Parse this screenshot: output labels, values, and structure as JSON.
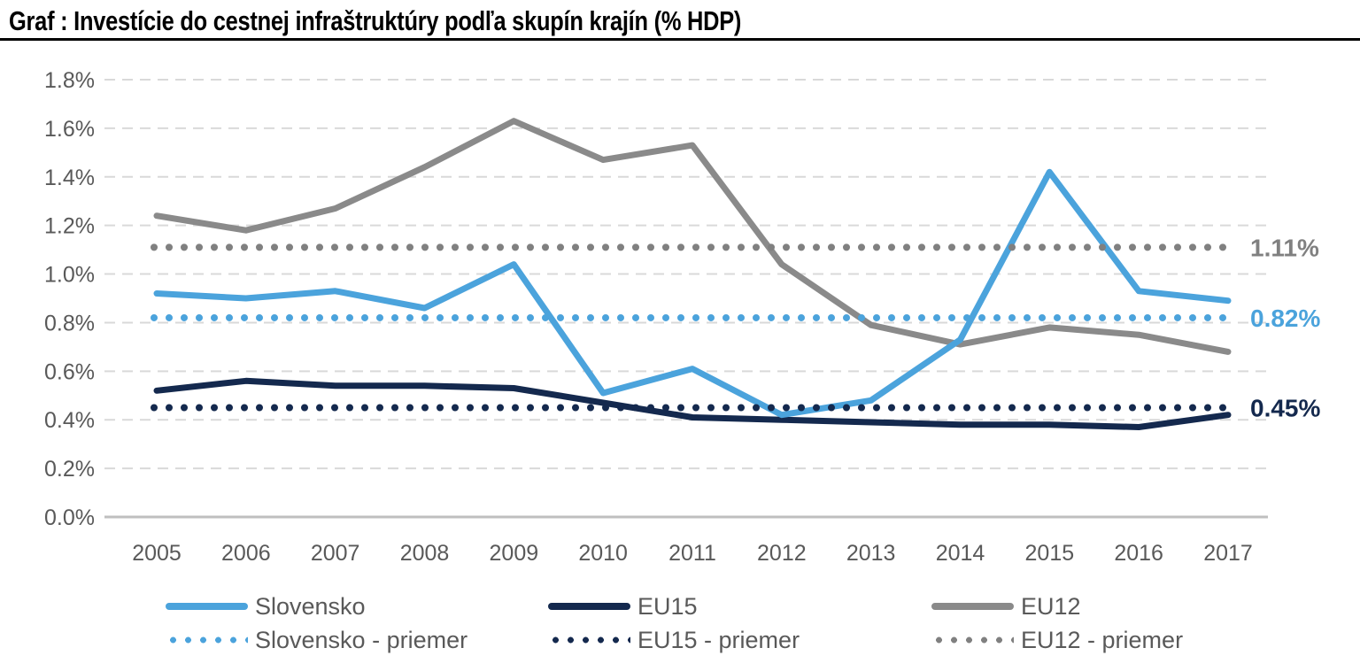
{
  "title": "Graf : Investície do cestnej infraštruktúry podľa skupín krajín (% HDP)",
  "chart_data": {
    "type": "line",
    "x": [
      2005,
      2006,
      2007,
      2008,
      2009,
      2010,
      2011,
      2012,
      2013,
      2014,
      2015,
      2016,
      2017
    ],
    "xtick_labels": [
      "2005",
      "2006",
      "2007",
      "2008",
      "2009",
      "2010",
      "2011",
      "2012",
      "2013",
      "2014",
      "2015",
      "2016",
      "2017"
    ],
    "ytick_labels": [
      "0.0%",
      "0.2%",
      "0.4%",
      "0.6%",
      "0.8%",
      "1.0%",
      "1.2%",
      "1.4%",
      "1.6%",
      "1.8%"
    ],
    "ylim": [
      0,
      1.8
    ],
    "ytick_step": 0.2,
    "grid": "horizontal-dashed",
    "legend_position": "bottom",
    "series": [
      {
        "name": "EU12",
        "color": "#8A8A8A",
        "values": [
          1.24,
          1.18,
          1.27,
          1.44,
          1.63,
          1.47,
          1.53,
          1.04,
          0.79,
          0.71,
          0.78,
          0.75,
          0.68
        ]
      },
      {
        "name": "EU15",
        "color": "#14294E",
        "values": [
          0.52,
          0.56,
          0.54,
          0.54,
          0.53,
          0.47,
          0.41,
          0.4,
          0.39,
          0.38,
          0.38,
          0.37,
          0.42
        ]
      },
      {
        "name": "Slovensko",
        "color": "#4BA3DC",
        "values": [
          0.92,
          0.9,
          0.93,
          0.86,
          1.04,
          0.51,
          0.61,
          0.42,
          0.48,
          0.73,
          1.42,
          0.93,
          0.89
        ]
      }
    ],
    "average_lines": [
      {
        "name": "EU12 - priemer",
        "color": "#808080",
        "value": 1.11,
        "label": "1.11%"
      },
      {
        "name": "Slovensko - priemer",
        "color": "#4BA3DC",
        "value": 0.82,
        "label": "0.82%"
      },
      {
        "name": "EU15 - priemer",
        "color": "#14294E",
        "value": 0.45,
        "label": "0.45%"
      }
    ]
  },
  "legend": {
    "row1": [
      {
        "label": "Slovensko",
        "style": "solid",
        "color": "#4BA3DC"
      },
      {
        "label": "EU15",
        "style": "solid",
        "color": "#14294E"
      },
      {
        "label": "EU12",
        "style": "solid",
        "color": "#8A8A8A"
      }
    ],
    "row2": [
      {
        "label": "Slovensko - priemer",
        "style": "dotted",
        "color": "#4BA3DC"
      },
      {
        "label": "EU15 - priemer",
        "style": "dotted",
        "color": "#14294E"
      },
      {
        "label": "EU12 - priemer",
        "style": "dotted",
        "color": "#808080"
      }
    ]
  },
  "colors": {
    "tick_text": "#595959",
    "legend_text": "#595959",
    "gridline": "#D9D9D9",
    "axis_line": "#BFBFBF",
    "title_text": "#000000"
  }
}
